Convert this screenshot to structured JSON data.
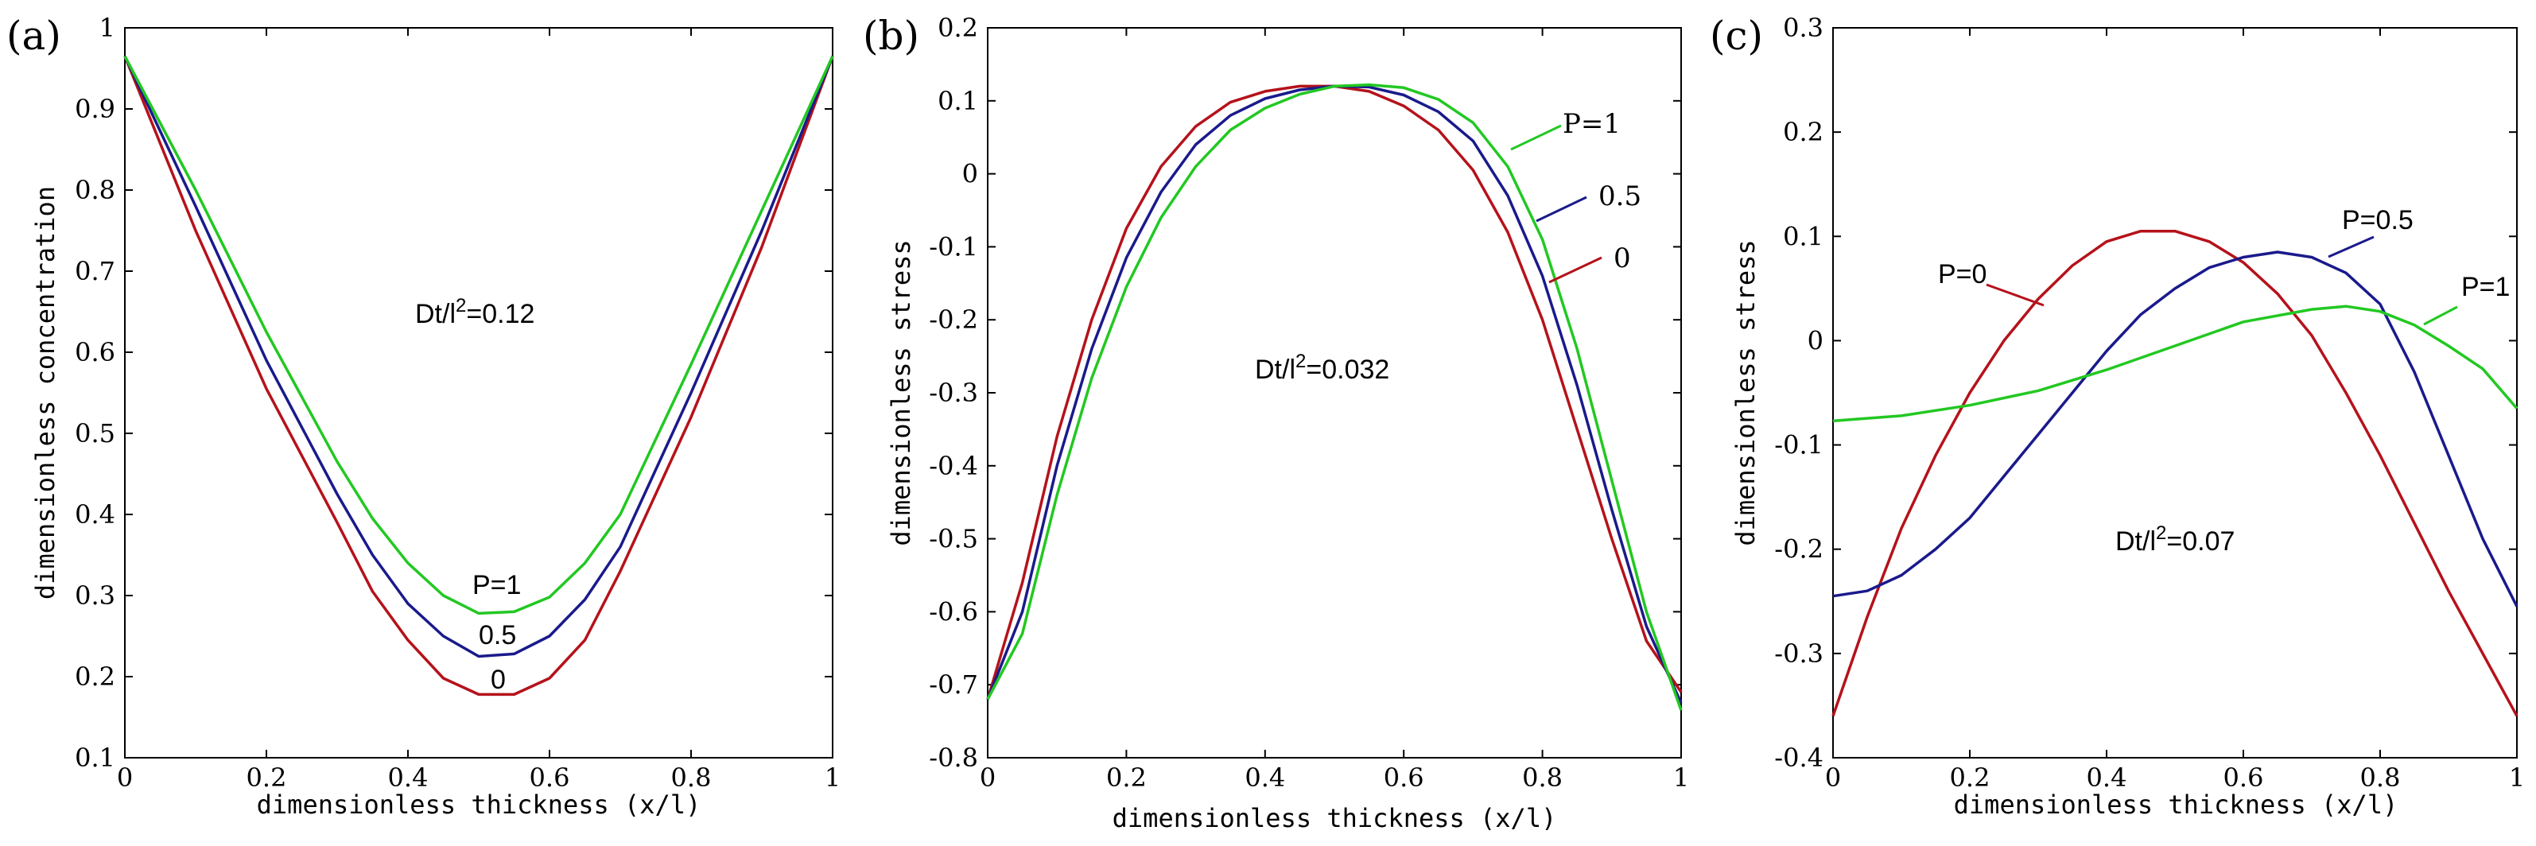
{
  "colors": {
    "P0": "#b5121b",
    "P05": "#1a1a8c",
    "P1": "#22c822",
    "frame": "#000000"
  },
  "chart_data": [
    {
      "panel": "(a)",
      "type": "line",
      "xlabel": "dimensionless thickness (x/l)",
      "ylabel": "dimensionless concentration",
      "xlim": [
        0,
        1
      ],
      "ylim": [
        0.1,
        1
      ],
      "xticks": [
        "0",
        "0.2",
        "0.4",
        "0.6",
        "0.8",
        "1"
      ],
      "yticks": [
        "0.1",
        "0.2",
        "0.3",
        "0.4",
        "0.5",
        "0.6",
        "0.7",
        "0.8",
        "0.9",
        "1"
      ],
      "annotation": {
        "prefix": "Dt/l",
        "sup": "2",
        "suffix": "=0.12"
      },
      "series": [
        {
          "name": "P=0",
          "label": "0",
          "color_key": "P0",
          "x": [
            0,
            0.1,
            0.2,
            0.3,
            0.35,
            0.4,
            0.45,
            0.5,
            0.55,
            0.6,
            0.65,
            0.7,
            0.8,
            0.9,
            1
          ],
          "y": [
            0.965,
            0.75,
            0.555,
            0.39,
            0.305,
            0.245,
            0.198,
            0.178,
            0.178,
            0.198,
            0.245,
            0.33,
            0.52,
            0.73,
            0.965
          ]
        },
        {
          "name": "P=0.5",
          "label": "0.5",
          "color_key": "P05",
          "x": [
            0,
            0.1,
            0.2,
            0.3,
            0.35,
            0.4,
            0.45,
            0.5,
            0.55,
            0.6,
            0.65,
            0.7,
            0.8,
            0.9,
            1
          ],
          "y": [
            0.965,
            0.78,
            0.59,
            0.425,
            0.35,
            0.29,
            0.25,
            0.225,
            0.228,
            0.25,
            0.295,
            0.36,
            0.55,
            0.75,
            0.965
          ]
        },
        {
          "name": "P=1",
          "label": "P=1",
          "color_key": "P1",
          "x": [
            0,
            0.1,
            0.2,
            0.3,
            0.35,
            0.4,
            0.45,
            0.5,
            0.55,
            0.6,
            0.65,
            0.7,
            0.8,
            0.9,
            1
          ],
          "y": [
            0.965,
            0.8,
            0.625,
            0.465,
            0.395,
            0.34,
            0.3,
            0.278,
            0.28,
            0.298,
            0.34,
            0.4,
            0.585,
            0.775,
            0.965
          ]
        }
      ]
    },
    {
      "panel": "(b)",
      "type": "line",
      "xlabel": "dimensionless thickness (x/l)",
      "ylabel": "dimensionless stress",
      "xlim": [
        0,
        1
      ],
      "ylim": [
        -0.8,
        0.2
      ],
      "xticks": [
        "0",
        "0.2",
        "0.4",
        "0.6",
        "0.8",
        "1"
      ],
      "yticks": [
        "-0.8",
        "-0.7",
        "-0.6",
        "-0.5",
        "-0.4",
        "-0.3",
        "-0.2",
        "-0.1",
        "0",
        "0.1",
        "0.2"
      ],
      "annotation": {
        "prefix": "Dt/l",
        "sup": "2",
        "suffix": "=0.032"
      },
      "series": [
        {
          "name": "P=0",
          "label": "0",
          "color_key": "P0",
          "x": [
            0,
            0.05,
            0.1,
            0.15,
            0.2,
            0.25,
            0.3,
            0.35,
            0.4,
            0.45,
            0.5,
            0.55,
            0.6,
            0.65,
            0.7,
            0.75,
            0.8,
            0.85,
            0.9,
            0.95,
            1
          ],
          "y": [
            -0.72,
            -0.56,
            -0.36,
            -0.2,
            -0.075,
            0.01,
            0.065,
            0.098,
            0.113,
            0.12,
            0.12,
            0.113,
            0.093,
            0.06,
            0.005,
            -0.08,
            -0.2,
            -0.35,
            -0.5,
            -0.64,
            -0.71
          ]
        },
        {
          "name": "P=0.5",
          "label": "0.5",
          "color_key": "P05",
          "x": [
            0,
            0.05,
            0.1,
            0.15,
            0.2,
            0.25,
            0.3,
            0.35,
            0.4,
            0.45,
            0.5,
            0.55,
            0.6,
            0.65,
            0.7,
            0.75,
            0.8,
            0.85,
            0.9,
            0.95,
            1
          ],
          "y": [
            -0.72,
            -0.6,
            -0.4,
            -0.24,
            -0.115,
            -0.025,
            0.04,
            0.08,
            0.103,
            0.115,
            0.12,
            0.119,
            0.108,
            0.085,
            0.045,
            -0.03,
            -0.14,
            -0.29,
            -0.46,
            -0.62,
            -0.725
          ]
        },
        {
          "name": "P=1",
          "label": "P=1",
          "color_key": "P1",
          "x": [
            0,
            0.05,
            0.1,
            0.15,
            0.2,
            0.25,
            0.3,
            0.35,
            0.4,
            0.45,
            0.5,
            0.55,
            0.6,
            0.65,
            0.7,
            0.75,
            0.8,
            0.85,
            0.9,
            0.95,
            1
          ],
          "y": [
            -0.72,
            -0.63,
            -0.44,
            -0.28,
            -0.155,
            -0.06,
            0.01,
            0.06,
            0.09,
            0.109,
            0.12,
            0.122,
            0.118,
            0.102,
            0.07,
            0.01,
            -0.09,
            -0.24,
            -0.42,
            -0.6,
            -0.735
          ]
        }
      ]
    },
    {
      "panel": "(c)",
      "type": "line",
      "xlabel": "dimensionless thickness (x/l)",
      "ylabel": "dimensionless stress",
      "xlim": [
        0,
        1
      ],
      "ylim": [
        -0.4,
        0.3
      ],
      "xticks": [
        "0",
        "0.2",
        "0.4",
        "0.6",
        "0.8",
        "1"
      ],
      "yticks": [
        "-0.4",
        "-0.3",
        "-0.2",
        "-0.1",
        "0",
        "0.1",
        "0.2",
        "0.3"
      ],
      "annotation": {
        "prefix": "Dt/l",
        "sup": "2",
        "suffix": "=0.07"
      },
      "series": [
        {
          "name": "P=0",
          "label": "P=0",
          "color_key": "P0",
          "x": [
            0,
            0.05,
            0.1,
            0.15,
            0.2,
            0.25,
            0.3,
            0.35,
            0.4,
            0.45,
            0.5,
            0.55,
            0.6,
            0.65,
            0.7,
            0.75,
            0.8,
            0.85,
            0.9,
            0.95,
            1
          ],
          "y": [
            -0.36,
            -0.265,
            -0.18,
            -0.11,
            -0.05,
            0.0,
            0.04,
            0.072,
            0.095,
            0.105,
            0.105,
            0.095,
            0.075,
            0.045,
            0.005,
            -0.05,
            -0.11,
            -0.175,
            -0.24,
            -0.3,
            -0.36
          ]
        },
        {
          "name": "P=0.5",
          "label": "P=0.5",
          "color_key": "P05",
          "x": [
            0,
            0.05,
            0.1,
            0.15,
            0.2,
            0.25,
            0.3,
            0.35,
            0.4,
            0.45,
            0.5,
            0.55,
            0.6,
            0.65,
            0.7,
            0.75,
            0.8,
            0.85,
            0.9,
            0.95,
            1
          ],
          "y": [
            -0.245,
            -0.24,
            -0.225,
            -0.2,
            -0.17,
            -0.13,
            -0.09,
            -0.05,
            -0.01,
            0.025,
            0.05,
            0.07,
            0.08,
            0.085,
            0.08,
            0.065,
            0.035,
            -0.03,
            -0.11,
            -0.19,
            -0.255
          ]
        },
        {
          "name": "P=1",
          "label": "P=1",
          "color_key": "P1",
          "x": [
            0,
            0.1,
            0.2,
            0.3,
            0.4,
            0.5,
            0.6,
            0.7,
            0.75,
            0.8,
            0.85,
            0.9,
            0.95,
            1
          ],
          "y": [
            -0.077,
            -0.072,
            -0.062,
            -0.048,
            -0.028,
            -0.005,
            0.018,
            0.03,
            0.033,
            0.028,
            0.015,
            -0.005,
            -0.027,
            -0.065
          ]
        }
      ]
    }
  ]
}
